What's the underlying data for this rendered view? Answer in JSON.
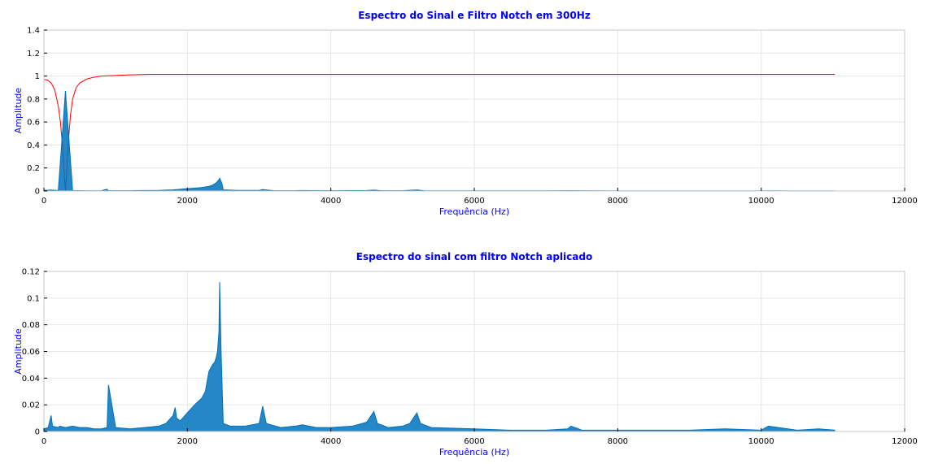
{
  "chart_data": [
    {
      "type": "line",
      "title": "Espectro do Sinal e Filtro Notch em 300Hz",
      "xlabel": "Frequência (Hz)",
      "ylabel": "Amplitude",
      "xlim": [
        0,
        12000
      ],
      "ylim": [
        0,
        1.4
      ],
      "xticks": [
        0,
        2000,
        4000,
        6000,
        8000,
        10000,
        12000
      ],
      "yticks": [
        0,
        0.2,
        0.4,
        0.6,
        0.8,
        1,
        1.2,
        1.4
      ],
      "grid": true,
      "series": [
        {
          "role": "filter_response",
          "color": "#ff0000",
          "x": [
            0,
            50,
            100,
            150,
            200,
            230,
            260,
            280,
            290,
            300,
            310,
            320,
            340,
            370,
            400,
            450,
            500,
            600,
            700,
            800,
            1000,
            1200,
            1500,
            2000,
            4000,
            6000,
            8000,
            10000,
            11025
          ],
          "values": [
            0.97,
            0.965,
            0.94,
            0.88,
            0.74,
            0.6,
            0.38,
            0.18,
            0.08,
            0.0,
            0.09,
            0.2,
            0.42,
            0.66,
            0.8,
            0.9,
            0.94,
            0.975,
            0.99,
            1.0,
            1.005,
            1.01,
            1.015,
            1.015,
            1.015,
            1.015,
            1.015,
            1.015,
            1.015
          ]
        },
        {
          "role": "original_spectrum",
          "color": "#0072bd",
          "x": [
            0,
            100,
            200,
            300,
            400,
            500,
            600,
            700,
            800,
            880,
            900,
            1000,
            1200,
            1400,
            1600,
            1800,
            1850,
            1900,
            2000,
            2100,
            2200,
            2300,
            2350,
            2400,
            2430,
            2450,
            2480,
            2500,
            2700,
            3000,
            3050,
            3200,
            3500,
            3600,
            4000,
            4500,
            4600,
            4700,
            5000,
            5200,
            5300,
            6000,
            7000,
            7350,
            8000,
            8500,
            9000,
            9500,
            10000,
            10100,
            10500,
            10800,
            11025
          ],
          "values": [
            0.005,
            0.008,
            0.004,
            0.87,
            0.003,
            0.003,
            0.002,
            0.002,
            0.002,
            0.015,
            0.003,
            0.003,
            0.003,
            0.004,
            0.005,
            0.01,
            0.012,
            0.015,
            0.02,
            0.025,
            0.03,
            0.04,
            0.05,
            0.07,
            0.09,
            0.11,
            0.07,
            0.01,
            0.005,
            0.005,
            0.012,
            0.003,
            0.003,
            0.004,
            0.003,
            0.004,
            0.008,
            0.003,
            0.003,
            0.009,
            0.003,
            0.002,
            0.002,
            0.003,
            0.001,
            0.001,
            0.001,
            0.001,
            0.001,
            0.002,
            0.001,
            0.001,
            0.001
          ]
        }
      ]
    },
    {
      "type": "line",
      "title": "Espectro do sinal com filtro Notch aplicado",
      "xlabel": "Frequência (Hz)",
      "ylabel": "Amplitude",
      "xlim": [
        0,
        12000
      ],
      "ylim": [
        0,
        0.12
      ],
      "xticks": [
        0,
        2000,
        4000,
        6000,
        8000,
        10000,
        12000
      ],
      "yticks": [
        0,
        0.02,
        0.04,
        0.06,
        0.08,
        0.1,
        0.12
      ],
      "grid": true,
      "series": [
        {
          "role": "filtered_spectrum",
          "color": "#0072bd",
          "x": [
            0,
            60,
            100,
            120,
            200,
            220,
            300,
            400,
            500,
            600,
            700,
            800,
            880,
            900,
            1000,
            1200,
            1400,
            1600,
            1700,
            1800,
            1830,
            1850,
            1900,
            2000,
            2100,
            2200,
            2250,
            2300,
            2350,
            2380,
            2400,
            2420,
            2440,
            2450,
            2470,
            2500,
            2600,
            2800,
            3000,
            3050,
            3100,
            3300,
            3500,
            3600,
            3800,
            4000,
            4300,
            4500,
            4600,
            4650,
            4800,
            5000,
            5100,
            5200,
            5250,
            5400,
            6000,
            6500,
            7000,
            7300,
            7350,
            7500,
            8000,
            8500,
            9000,
            9500,
            10000,
            10100,
            10500,
            10800,
            11025
          ],
          "values": [
            0.002,
            0.003,
            0.012,
            0.004,
            0.003,
            0.004,
            0.003,
            0.004,
            0.003,
            0.003,
            0.002,
            0.002,
            0.003,
            0.035,
            0.003,
            0.002,
            0.003,
            0.004,
            0.006,
            0.012,
            0.018,
            0.01,
            0.008,
            0.014,
            0.02,
            0.025,
            0.03,
            0.045,
            0.05,
            0.052,
            0.055,
            0.06,
            0.075,
            0.112,
            0.06,
            0.006,
            0.004,
            0.004,
            0.006,
            0.019,
            0.006,
            0.003,
            0.004,
            0.005,
            0.003,
            0.003,
            0.004,
            0.007,
            0.015,
            0.006,
            0.003,
            0.004,
            0.006,
            0.014,
            0.006,
            0.003,
            0.002,
            0.001,
            0.001,
            0.002,
            0.004,
            0.001,
            0.001,
            0.001,
            0.001,
            0.002,
            0.001,
            0.004,
            0.001,
            0.002,
            0.001
          ]
        }
      ]
    }
  ]
}
